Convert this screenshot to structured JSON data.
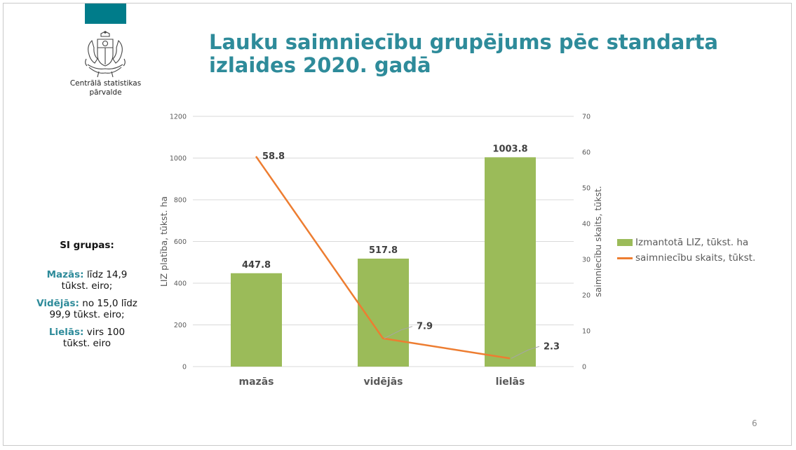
{
  "colors": {
    "accent": "#007c8a",
    "title": "#2e8b9a",
    "bar": "#9bbb59",
    "line": "#ed7d31",
    "grid": "#d9d9d9",
    "axis_text": "#595959",
    "label_text": "#404040"
  },
  "organization": {
    "name_line1": "Centrālā statistikas",
    "name_line2": "pārvalde"
  },
  "title": {
    "line1": "Lauku saimniecību grupējums pēc standarta",
    "line2": "izlaides 2020. gadā"
  },
  "groups": {
    "heading": "SI grupas:",
    "items": [
      {
        "name": "Mazās:",
        "text": " līdz 14,9 tūkst. eiro;"
      },
      {
        "name": "Vidējās:",
        "text": " no 15,0 līdz 99,9 tūkst. eiro;"
      },
      {
        "name": "Lielās:",
        "text": " virs 100 tūkst. eiro"
      }
    ]
  },
  "page_number": "6",
  "chart_data": {
    "type": "bar",
    "categories": [
      "mazās",
      "vidējās",
      "lielās"
    ],
    "series": [
      {
        "name": "Izmantotā LIZ, tūkst. ha",
        "kind": "bar",
        "axis": "left",
        "values": [
          447.8,
          517.8,
          1003.8
        ],
        "labels": [
          "447.8",
          "517.8",
          "1003.8"
        ]
      },
      {
        "name": "saimniecību skaits, tūkst.",
        "kind": "line",
        "axis": "right",
        "values": [
          58.8,
          7.9,
          2.3
        ],
        "labels": [
          "58.8",
          "7.9",
          "2.3"
        ]
      }
    ],
    "ylabel": "LIZ platība, tūkst. ha",
    "y2label": "saimniecību skaits, tūkst.",
    "ylim": [
      0,
      1200
    ],
    "y2lim": [
      0,
      70
    ],
    "yticks": [
      "0",
      "200",
      "400",
      "600",
      "800",
      "1000",
      "1200"
    ],
    "y2ticks": [
      "0",
      "10",
      "20",
      "30",
      "40",
      "50",
      "60",
      "70"
    ],
    "grid": true,
    "legend_position": "right"
  }
}
